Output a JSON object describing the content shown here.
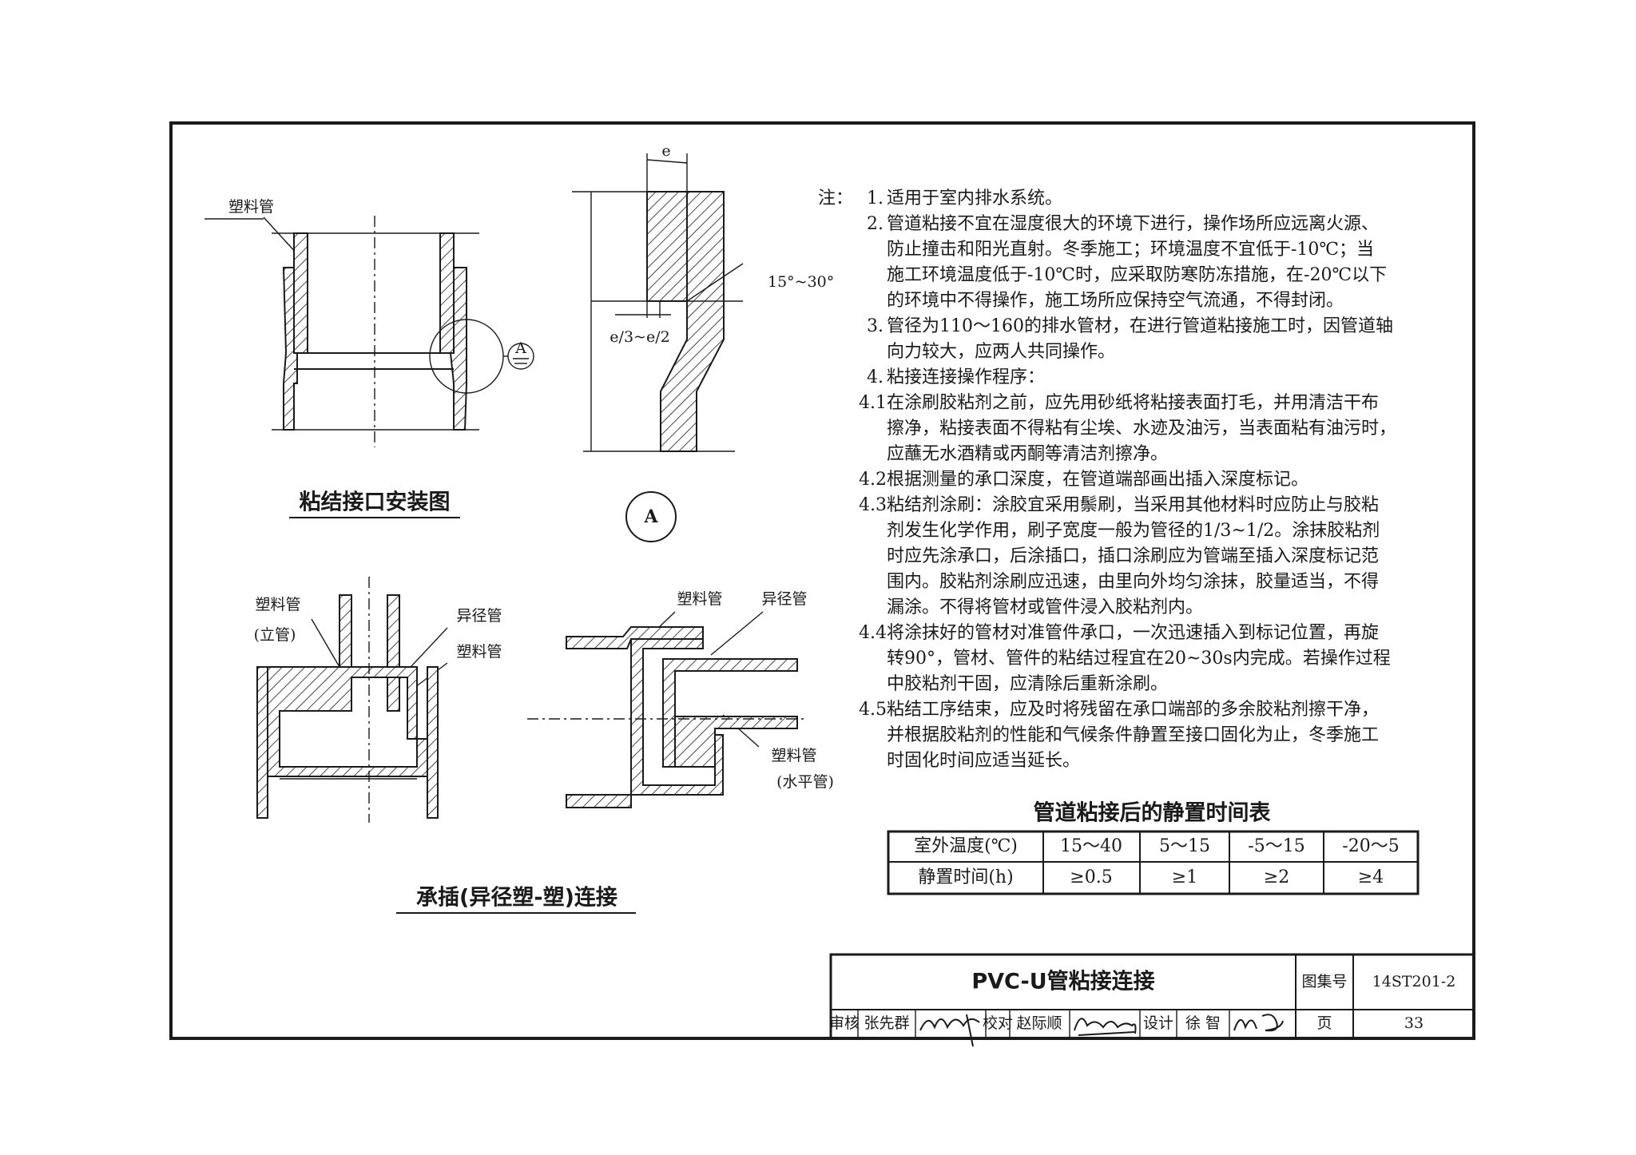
{
  "drawings": {
    "installation": {
      "label_pipe": "塑料管",
      "detail_marker": "A",
      "caption": "粘结接口安装图"
    },
    "detail_a": {
      "label_e": "e",
      "label_angle": "15°~30°",
      "label_depth": "e/3~e/2",
      "marker": "A"
    },
    "vertical_joint": {
      "label_pipe": "塑料管",
      "label_pipe_note": "(立管)",
      "label_reducer": "异径管",
      "label_pipe2": "塑料管",
      "caption": "承插(异径塑-塑)连接"
    },
    "horizontal_joint": {
      "label_pipe": "塑料管",
      "label_reducer": "异径管",
      "label_pipe2": "塑料管",
      "label_pipe2_note": "(水平管)"
    }
  },
  "notes": {
    "heading": "注：",
    "items": [
      {
        "number": "1.",
        "lines": [
          "适用于室内排水系统。"
        ]
      },
      {
        "number": "2.",
        "lines": [
          "管道粘接不宜在湿度很大的环境下进行，操作场所应远离火源、",
          "防止撞击和阳光直射。冬季施工；环境温度不宜低于-10℃；当",
          "施工环境温度低于-10℃时，应采取防寒防冻措施，在-20℃以下",
          "的环境中不得操作，施工场所应保持空气流通，不得封闭。"
        ]
      },
      {
        "number": "3.",
        "lines": [
          "管径为110～160的排水管材，在进行管道粘接施工时，因管道轴",
          "向力较大，应两人共同操作。"
        ]
      },
      {
        "number": "4.",
        "lines": [
          "粘接连接操作程序："
        ]
      },
      {
        "number": "4.1",
        "lines": [
          "在涂刷胶粘剂之前，应先用砂纸将粘接表面打毛，并用清洁干布",
          "擦净，粘接表面不得粘有尘埃、水迹及油污，当表面粘有油污时，",
          "应蘸无水酒精或丙酮等清洁剂擦净。"
        ]
      },
      {
        "number": "4.2",
        "lines": [
          "根据测量的承口深度，在管道端部画出插入深度标记。"
        ]
      },
      {
        "number": "4.3",
        "lines": [
          "粘结剂涂刷：涂胶宜采用鬃刷，当采用其他材料时应防止与胶粘",
          "剂发生化学作用，刷子宽度一般为管径的1/3~1/2。涂抹胶粘剂",
          "时应先涂承口，后涂插口，插口涂刷应为管端至插入深度标记范",
          "围内。胶粘剂涂刷应迅速，由里向外均匀涂抹，胶量适当，不得",
          "漏涂。不得将管材或管件浸入胶粘剂内。"
        ]
      },
      {
        "number": "4.4",
        "lines": [
          "将涂抹好的管材对准管件承口，一次迅速插入到标记位置，再旋",
          "转90°，管材、管件的粘结过程宜在20~30s内完成。若操作过程",
          "中胶粘剂干固，应清除后重新涂刷。"
        ]
      },
      {
        "number": "4.5",
        "lines": [
          "粘结工序结束，应及时将残留在承口端部的多余胶粘剂擦干净，",
          "并根据胶粘剂的性能和气候条件静置至接口固化为止，冬季施工",
          "时固化时间应适当延长。"
        ]
      }
    ]
  },
  "table": {
    "title": "管道粘接后的静置时间表",
    "rows": [
      [
        "室外温度(℃)",
        "15～40",
        "5～15",
        "-5～15",
        "-20～5"
      ],
      [
        "静置时间(h)",
        "≥0.5",
        "≥1",
        "≥2",
        "≥4"
      ]
    ]
  },
  "title_block": {
    "title": "PVC-U管粘接连接",
    "atlas_label": "图集号",
    "atlas_number": "14ST201-2",
    "page_label": "页",
    "page_number": "33",
    "review_label": "审核",
    "reviewer": "张先群",
    "check_label": "校对",
    "checker": "赵际顺",
    "design_label": "设计",
    "designer": "徐 智"
  }
}
